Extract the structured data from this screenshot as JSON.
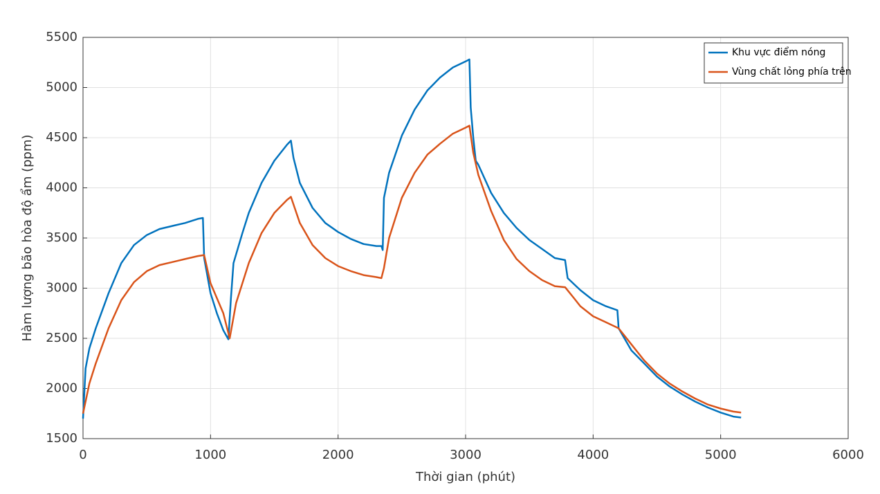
{
  "chart_data": {
    "type": "line",
    "xlabel": "Thời gian (phút)",
    "ylabel": "Hàm lượng bão hòa độ ẩm (ppm)",
    "xlim": [
      0,
      6000
    ],
    "xticks": [
      0,
      1000,
      2000,
      3000,
      4000,
      5000,
      6000
    ],
    "ylim": [
      1500,
      5500
    ],
    "yticks": [
      1500,
      2000,
      2500,
      3000,
      3500,
      4000,
      4500,
      5000,
      5500
    ],
    "grid": true,
    "legend": "upper right",
    "series": [
      {
        "name": "Khu vực điểm nóng",
        "color": "#0072bd",
        "x": [
          0,
          20,
          50,
          100,
          200,
          300,
          400,
          500,
          600,
          700,
          800,
          900,
          940,
          950,
          1000,
          1050,
          1100,
          1140,
          1160,
          1180,
          1250,
          1300,
          1400,
          1500,
          1600,
          1630,
          1650,
          1700,
          1800,
          1900,
          2000,
          2100,
          2200,
          2300,
          2340,
          2350,
          2360,
          2400,
          2500,
          2600,
          2700,
          2800,
          2900,
          3000,
          3030,
          3040,
          3060,
          3080,
          3100,
          3200,
          3300,
          3400,
          3500,
          3600,
          3700,
          3780,
          3800,
          3900,
          4000,
          4100,
          4190,
          4200,
          4300,
          4400,
          4500,
          4600,
          4700,
          4800,
          4900,
          5000,
          5100,
          5160
        ],
        "values": [
          1700,
          2200,
          2400,
          2600,
          2950,
          3250,
          3430,
          3530,
          3590,
          3620,
          3650,
          3690,
          3700,
          3300,
          2950,
          2750,
          2580,
          2490,
          2900,
          3250,
          3550,
          3750,
          4050,
          4270,
          4430,
          4470,
          4300,
          4050,
          3800,
          3650,
          3560,
          3490,
          3440,
          3420,
          3420,
          3380,
          3900,
          4150,
          4520,
          4780,
          4970,
          5100,
          5200,
          5260,
          5280,
          4800,
          4500,
          4270,
          4230,
          3950,
          3750,
          3600,
          3480,
          3390,
          3300,
          3280,
          3100,
          2980,
          2880,
          2820,
          2780,
          2600,
          2380,
          2250,
          2120,
          2020,
          1940,
          1870,
          1810,
          1760,
          1720,
          1710
        ]
      },
      {
        "name": "Vùng chất lỏng phía trên",
        "color": "#d95319",
        "x": [
          0,
          50,
          100,
          200,
          300,
          400,
          500,
          600,
          700,
          800,
          900,
          950,
          1000,
          1100,
          1150,
          1200,
          1300,
          1400,
          1500,
          1600,
          1630,
          1700,
          1800,
          1900,
          2000,
          2100,
          2200,
          2300,
          2340,
          2360,
          2400,
          2500,
          2600,
          2700,
          2800,
          2900,
          3000,
          3030,
          3060,
          3100,
          3200,
          3300,
          3400,
          3500,
          3600,
          3700,
          3780,
          3850,
          3900,
          4000,
          4100,
          4200,
          4300,
          4400,
          4500,
          4600,
          4700,
          4800,
          4900,
          5000,
          5100,
          5160
        ],
        "values": [
          1750,
          2050,
          2250,
          2600,
          2880,
          3060,
          3170,
          3230,
          3260,
          3290,
          3320,
          3330,
          3050,
          2750,
          2500,
          2850,
          3250,
          3550,
          3750,
          3880,
          3910,
          3650,
          3430,
          3300,
          3220,
          3170,
          3130,
          3110,
          3100,
          3200,
          3500,
          3900,
          4150,
          4330,
          4440,
          4540,
          4600,
          4620,
          4350,
          4130,
          3770,
          3480,
          3290,
          3170,
          3080,
          3020,
          3010,
          2900,
          2820,
          2720,
          2660,
          2600,
          2440,
          2280,
          2150,
          2050,
          1970,
          1900,
          1840,
          1800,
          1770,
          1760
        ]
      }
    ]
  }
}
